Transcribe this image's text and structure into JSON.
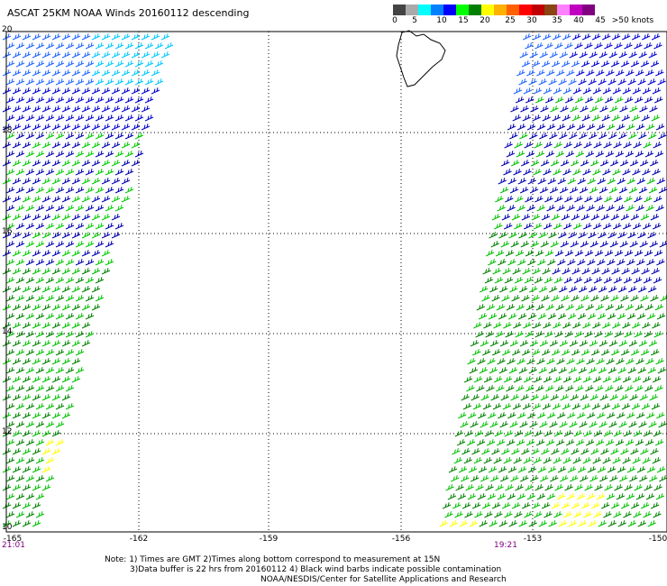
{
  "title": "ASCAT 25KM NOAA Winds 20160112 descending",
  "legend": {
    "unit": "knots",
    "colors": [
      "#444444",
      "#aaaaaa",
      "#00ffff",
      "#0080ff",
      "#0000ff",
      "#00ff00",
      "#008000",
      "#ffff00",
      "#ffb000",
      "#ff6000",
      "#ff0000",
      "#c00000",
      "#8b4513",
      "#ff80ff",
      "#c000c0",
      "#800080"
    ],
    "labels": [
      "0",
      "5",
      "10",
      "15",
      "20",
      "25",
      "30",
      "35",
      "40",
      "45",
      ">50 knots"
    ]
  },
  "map": {
    "lat_labels": [
      "20",
      "18",
      "16",
      "14",
      "12",
      "10"
    ],
    "lon_labels": [
      "-165",
      "-162",
      "-159",
      "-156",
      "-153",
      "-150"
    ],
    "time_left": "21:01",
    "time_right": "19:21"
  },
  "notes": {
    "line1": "Note: 1) Times are GMT 2)Times along bottom correspond to measurement at 15N",
    "line2": "3)Data buffer is 22 hrs from 20160112 4) Black wind barbs indicate possible contamination",
    "line3": "NOAA/NESDIS/Center for Satellite Applications and Research"
  }
}
